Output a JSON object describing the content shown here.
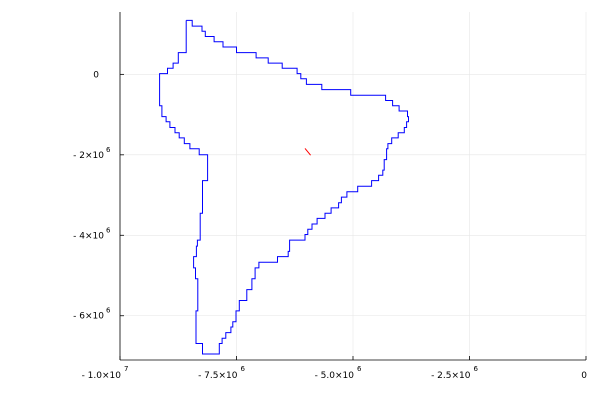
{
  "chart_data": {
    "type": "line",
    "title": "",
    "xlabel": "",
    "ylabel": "",
    "xlim": [
      -10000000,
      0
    ],
    "ylim": [
      -7100000,
      1550000
    ],
    "grid": true,
    "legend": "none",
    "x_ticks": [
      {
        "value": -10000000,
        "mantissa": "- 1.0×10",
        "exp": "7"
      },
      {
        "value": -7500000,
        "mantissa": "- 7.5×10",
        "exp": "6"
      },
      {
        "value": -5000000,
        "mantissa": "- 5.0×10",
        "exp": "6"
      },
      {
        "value": -2500000,
        "mantissa": "- 2.5×10",
        "exp": "6"
      },
      {
        "value": 0,
        "mantissa": "0",
        "exp": ""
      }
    ],
    "y_ticks": [
      {
        "value": 0,
        "mantissa": "0",
        "exp": ""
      },
      {
        "value": -2000000,
        "mantissa": "- 2×10",
        "exp": "6"
      },
      {
        "value": -4000000,
        "mantissa": "- 4×10",
        "exp": "6"
      },
      {
        "value": -6000000,
        "mantissa": "- 6×10",
        "exp": "6"
      }
    ],
    "series": [
      {
        "color": "#0000ff",
        "points": [
          [
            -8580000,
            1340000
          ],
          [
            -8450000,
            1340000
          ],
          [
            -8450000,
            1200000
          ],
          [
            -8240000,
            1200000
          ],
          [
            -8240000,
            1070000
          ],
          [
            -8170000,
            1070000
          ],
          [
            -8170000,
            940000
          ],
          [
            -7980000,
            940000
          ],
          [
            -7980000,
            810000
          ],
          [
            -7790000,
            810000
          ],
          [
            -7790000,
            680000
          ],
          [
            -7500000,
            680000
          ],
          [
            -7500000,
            540000
          ],
          [
            -7080000,
            540000
          ],
          [
            -7080000,
            410000
          ],
          [
            -6820000,
            410000
          ],
          [
            -6820000,
            280000
          ],
          [
            -6520000,
            280000
          ],
          [
            -6520000,
            150000
          ],
          [
            -6200000,
            150000
          ],
          [
            -6200000,
            20000
          ],
          [
            -6120000,
            20000
          ],
          [
            -6120000,
            -110000
          ],
          [
            -6000000,
            -110000
          ],
          [
            -6000000,
            -250000
          ],
          [
            -5670000,
            -250000
          ],
          [
            -5670000,
            -380000
          ],
          [
            -5050000,
            -380000
          ],
          [
            -5050000,
            -520000
          ],
          [
            -4300000,
            -520000
          ],
          [
            -4300000,
            -650000
          ],
          [
            -4150000,
            -650000
          ],
          [
            -4150000,
            -780000
          ],
          [
            -4010000,
            -780000
          ],
          [
            -4010000,
            -910000
          ],
          [
            -3830000,
            -910000
          ],
          [
            -3830000,
            -1050000
          ],
          [
            -3810000,
            -1050000
          ],
          [
            -3810000,
            -1180000
          ],
          [
            -3850000,
            -1180000
          ],
          [
            -3850000,
            -1320000
          ],
          [
            -3900000,
            -1320000
          ],
          [
            -3900000,
            -1450000
          ],
          [
            -4030000,
            -1450000
          ],
          [
            -4030000,
            -1580000
          ],
          [
            -4170000,
            -1580000
          ],
          [
            -4170000,
            -1720000
          ],
          [
            -4250000,
            -1720000
          ],
          [
            -4250000,
            -1850000
          ],
          [
            -4280000,
            -1850000
          ],
          [
            -4280000,
            -2120000
          ],
          [
            -4330000,
            -2120000
          ],
          [
            -4330000,
            -2380000
          ],
          [
            -4360000,
            -2380000
          ],
          [
            -4360000,
            -2510000
          ],
          [
            -4450000,
            -2510000
          ],
          [
            -4450000,
            -2640000
          ],
          [
            -4600000,
            -2640000
          ],
          [
            -4600000,
            -2780000
          ],
          [
            -4900000,
            -2780000
          ],
          [
            -4900000,
            -2920000
          ],
          [
            -5130000,
            -2920000
          ],
          [
            -5130000,
            -3050000
          ],
          [
            -5250000,
            -3050000
          ],
          [
            -5250000,
            -3190000
          ],
          [
            -5310000,
            -3190000
          ],
          [
            -5310000,
            -3320000
          ],
          [
            -5470000,
            -3320000
          ],
          [
            -5470000,
            -3450000
          ],
          [
            -5600000,
            -3450000
          ],
          [
            -5600000,
            -3580000
          ],
          [
            -5770000,
            -3580000
          ],
          [
            -5770000,
            -3720000
          ],
          [
            -5880000,
            -3720000
          ],
          [
            -5880000,
            -3850000
          ],
          [
            -5970000,
            -3850000
          ],
          [
            -5970000,
            -3980000
          ],
          [
            -6030000,
            -3980000
          ],
          [
            -6030000,
            -4120000
          ],
          [
            -6360000,
            -4120000
          ],
          [
            -6360000,
            -4400000
          ],
          [
            -6390000,
            -4400000
          ],
          [
            -6390000,
            -4530000
          ],
          [
            -6620000,
            -4530000
          ],
          [
            -6620000,
            -4670000
          ],
          [
            -7020000,
            -4670000
          ],
          [
            -7020000,
            -4810000
          ],
          [
            -7100000,
            -4810000
          ],
          [
            -7100000,
            -5080000
          ],
          [
            -7170000,
            -5080000
          ],
          [
            -7170000,
            -5350000
          ],
          [
            -7280000,
            -5350000
          ],
          [
            -7280000,
            -5620000
          ],
          [
            -7440000,
            -5620000
          ],
          [
            -7440000,
            -5880000
          ],
          [
            -7510000,
            -5880000
          ],
          [
            -7510000,
            -6150000
          ],
          [
            -7580000,
            -6150000
          ],
          [
            -7580000,
            -6280000
          ],
          [
            -7620000,
            -6280000
          ],
          [
            -7620000,
            -6420000
          ],
          [
            -7730000,
            -6420000
          ],
          [
            -7730000,
            -6560000
          ],
          [
            -7810000,
            -6560000
          ],
          [
            -7810000,
            -6690000
          ],
          [
            -7870000,
            -6690000
          ],
          [
            -7870000,
            -6950000
          ],
          [
            -8230000,
            -6950000
          ],
          [
            -8230000,
            -6690000
          ],
          [
            -8370000,
            -6690000
          ],
          [
            -8370000,
            -5880000
          ],
          [
            -8330000,
            -5880000
          ],
          [
            -8330000,
            -5080000
          ],
          [
            -8380000,
            -5080000
          ],
          [
            -8380000,
            -4810000
          ],
          [
            -8420000,
            -4810000
          ],
          [
            -8420000,
            -4530000
          ],
          [
            -8360000,
            -4530000
          ],
          [
            -8360000,
            -4270000
          ],
          [
            -8340000,
            -4270000
          ],
          [
            -8340000,
            -4120000
          ],
          [
            -8280000,
            -4120000
          ],
          [
            -8280000,
            -3450000
          ],
          [
            -8230000,
            -3450000
          ],
          [
            -8230000,
            -2640000
          ],
          [
            -8120000,
            -2640000
          ],
          [
            -8120000,
            -2000000
          ],
          [
            -8300000,
            -2000000
          ],
          [
            -8300000,
            -1850000
          ],
          [
            -8500000,
            -1850000
          ],
          [
            -8500000,
            -1720000
          ],
          [
            -8620000,
            -1720000
          ],
          [
            -8620000,
            -1580000
          ],
          [
            -8730000,
            -1580000
          ],
          [
            -8730000,
            -1450000
          ],
          [
            -8820000,
            -1450000
          ],
          [
            -8820000,
            -1320000
          ],
          [
            -8930000,
            -1320000
          ],
          [
            -8930000,
            -1180000
          ],
          [
            -9010000,
            -1180000
          ],
          [
            -9010000,
            -1050000
          ],
          [
            -9100000,
            -1050000
          ],
          [
            -9100000,
            -780000
          ],
          [
            -9150000,
            -780000
          ],
          [
            -9150000,
            20000
          ],
          [
            -8980000,
            20000
          ],
          [
            -8980000,
            150000
          ],
          [
            -8860000,
            150000
          ],
          [
            -8860000,
            280000
          ],
          [
            -8750000,
            280000
          ],
          [
            -8750000,
            540000
          ],
          [
            -8580000,
            540000
          ],
          [
            -8580000,
            940000
          ],
          [
            -8580000,
            1340000
          ]
        ]
      },
      {
        "color": "#ff0000",
        "points": [
          [
            -6030000,
            -1840000
          ],
          [
            -5910000,
            -2010000
          ]
        ]
      }
    ]
  }
}
